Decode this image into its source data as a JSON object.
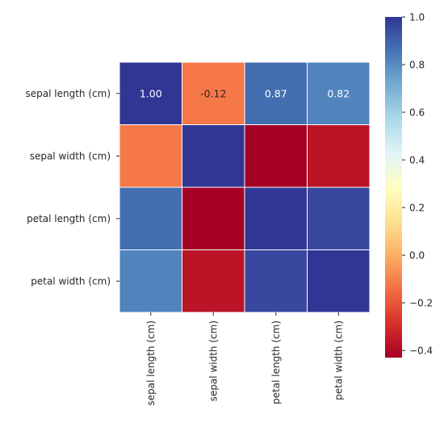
{
  "chart_data": {
    "type": "heatmap",
    "title": "",
    "xlabel": "",
    "ylabel": "",
    "row_labels": [
      "sepal length (cm)",
      "sepal width (cm)",
      "petal length (cm)",
      "petal width (cm)"
    ],
    "col_labels": [
      "sepal length (cm)",
      "sepal width (cm)",
      "petal length (cm)",
      "petal width (cm)"
    ],
    "values": [
      [
        1.0,
        -0.12,
        0.87,
        0.82
      ],
      [
        -0.12,
        1.0,
        -0.43,
        -0.37
      ],
      [
        0.87,
        -0.43,
        1.0,
        0.96
      ],
      [
        0.82,
        -0.37,
        0.96,
        1.0
      ]
    ],
    "annotations": [
      [
        "1.00",
        "-0.12",
        "0.87",
        "0.82"
      ],
      [
        null,
        null,
        null,
        null
      ],
      [
        null,
        null,
        null,
        null
      ],
      [
        null,
        null,
        null,
        null
      ]
    ],
    "colormap": "RdYlBu",
    "vmin": -0.43,
    "vmax": 1.0,
    "colorbar_ticks": [
      "1.0",
      "0.8",
      "0.6",
      "0.4",
      "0.2",
      "0.0",
      "−0.2",
      "−0.4"
    ],
    "colorbar_tick_values": [
      1.0,
      0.8,
      0.6,
      0.4,
      0.2,
      0.0,
      -0.2,
      -0.4
    ],
    "grid_line_color": "#ffffff"
  }
}
